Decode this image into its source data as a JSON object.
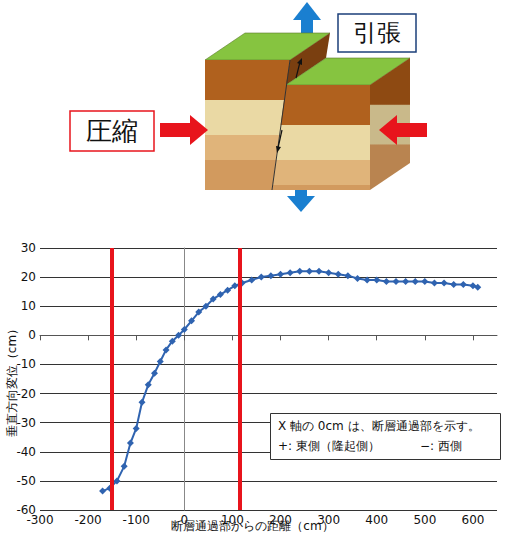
{
  "diagram": {
    "tension_label": "引張",
    "compression_label": "圧縮"
  },
  "chart_data": {
    "type": "line",
    "x_label": "断層通過部からの距離（cm）",
    "y_label": "垂直方向変位（cm）",
    "x": [
      -170,
      -155,
      -140,
      -125,
      -112,
      -100,
      -88,
      -75,
      -62,
      -50,
      -38,
      -25,
      -12,
      0,
      15,
      30,
      45,
      60,
      75,
      90,
      105,
      120,
      140,
      160,
      180,
      200,
      220,
      240,
      260,
      280,
      300,
      320,
      340,
      360,
      380,
      400,
      420,
      440,
      460,
      480,
      500,
      520,
      540,
      560,
      580,
      600,
      610
    ],
    "values": [
      -53.5,
      -52.5,
      -50,
      -45,
      -37,
      -32,
      -23,
      -17,
      -13,
      -9,
      -5,
      -2,
      0,
      2,
      5,
      8,
      10,
      12.5,
      14,
      15.5,
      17,
      18,
      19,
      20,
      20.5,
      21,
      21.5,
      22,
      22,
      22,
      21.5,
      21,
      20.5,
      19.5,
      19,
      19,
      18.5,
      18.5,
      18.5,
      18.5,
      18.5,
      18,
      18,
      17.5,
      17.5,
      17,
      16.5
    ],
    "color": "#2f63b0",
    "marker": "diamond",
    "xlim": [
      -300,
      650
    ],
    "xticks": [
      -300,
      -200,
      -100,
      0,
      100,
      200,
      300,
      400,
      500,
      600
    ],
    "ylim": [
      -60,
      30
    ],
    "yticks": [
      -60,
      -50,
      -40,
      -30,
      -20,
      -10,
      0,
      10,
      20,
      30
    ],
    "grid": true,
    "reference_lines": {
      "x": [
        -150,
        115
      ],
      "color": "#e8141c"
    },
    "annotations": [
      "X 軸の 0cm は、断層通過部を示す。",
      "+: 東側（隆起側）",
      "−: 西側"
    ]
  }
}
